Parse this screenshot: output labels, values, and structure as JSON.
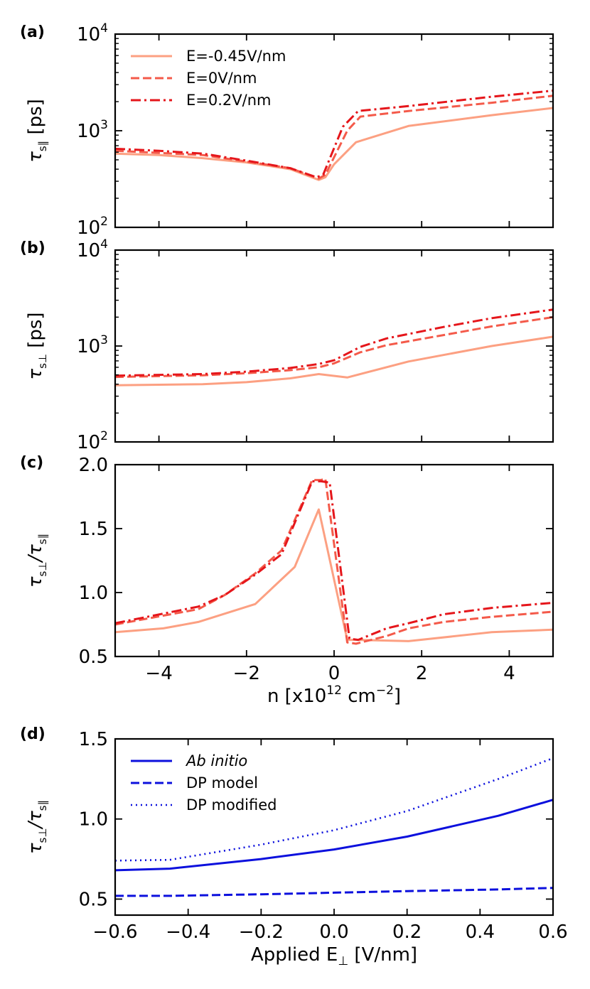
{
  "colors": {
    "light": "#fca082",
    "medium": "#f45a4a",
    "dark": "#e5161b",
    "blue": "#0c10dd"
  },
  "chart_data": [
    {
      "id": "a",
      "panel_label": "(a)",
      "type": "line",
      "ylabel_main": "τ",
      "ylabel_sub": "s∥",
      "ylabel_unit": " [ps]",
      "yscale": "log",
      "ylim": [
        100,
        10000
      ],
      "xlim": [
        -5,
        5
      ],
      "ytick_labels": [
        {
          "value": 100,
          "base": "10",
          "exp": "2"
        },
        {
          "value": 1000,
          "base": "10",
          "exp": "3"
        },
        {
          "value": 10000,
          "base": "10",
          "exp": "4"
        }
      ],
      "legend": {
        "placement": "top-left"
      },
      "series": [
        {
          "name": "E=-0.45V/nm",
          "style": "solid",
          "color_key": "light",
          "x": [
            -5,
            -4,
            -3,
            -2,
            -1,
            -0.35,
            -0.2,
            0,
            0.5,
            1.7,
            3.6,
            5
          ],
          "y": [
            580,
            560,
            520,
            470,
            400,
            310,
            330,
            450,
            760,
            1120,
            1450,
            1720
          ]
        },
        {
          "name": "E=0V/nm",
          "style": "dashed",
          "color_key": "medium",
          "x": [
            -5,
            -4,
            -3,
            -2,
            -1,
            -0.35,
            -0.2,
            0.3,
            0.6,
            1.7,
            3.6,
            5
          ],
          "y": [
            620,
            590,
            560,
            480,
            410,
            320,
            350,
            1000,
            1400,
            1600,
            1950,
            2300
          ]
        },
        {
          "name": "E=0.2V/nm",
          "style": "dashdot",
          "color_key": "dark",
          "x": [
            -5,
            -4,
            -3,
            -2,
            -1,
            -0.4,
            -0.25,
            0.2,
            0.55,
            1.7,
            3.6,
            5
          ],
          "y": [
            650,
            620,
            580,
            490,
            410,
            330,
            350,
            1100,
            1600,
            1800,
            2250,
            2600
          ]
        }
      ]
    },
    {
      "id": "b",
      "panel_label": "(b)",
      "type": "line",
      "ylabel_main": "τ",
      "ylabel_sub": "s⊥",
      "ylabel_unit": " [ps]",
      "yscale": "log",
      "ylim": [
        100,
        10000
      ],
      "xlim": [
        -5,
        5
      ],
      "ytick_labels": [
        {
          "value": 100,
          "base": "10",
          "exp": "2"
        },
        {
          "value": 1000,
          "base": "10",
          "exp": "3"
        },
        {
          "value": 10000,
          "base": "10",
          "exp": "4"
        }
      ],
      "series": [
        {
          "style": "solid",
          "color_key": "light",
          "x": [
            -5,
            -3,
            -2,
            -1,
            -0.35,
            0.3,
            1.7,
            3.6,
            5
          ],
          "y": [
            390,
            400,
            420,
            460,
            510,
            470,
            690,
            1000,
            1250
          ]
        },
        {
          "style": "dashed",
          "color_key": "medium",
          "x": [
            -5,
            -3,
            -2,
            -1,
            -0.35,
            0,
            0.6,
            1.2,
            2.5,
            3.6,
            5
          ],
          "y": [
            475,
            495,
            520,
            560,
            600,
            660,
            860,
            1020,
            1300,
            1600,
            2000
          ]
        },
        {
          "style": "dashdot",
          "color_key": "dark",
          "x": [
            -5,
            -3,
            -2,
            -1,
            -0.35,
            0,
            0.6,
            1.2,
            2.5,
            3.6,
            5
          ],
          "y": [
            490,
            510,
            540,
            590,
            650,
            710,
            980,
            1200,
            1580,
            1950,
            2400
          ]
        }
      ]
    },
    {
      "id": "c",
      "panel_label": "(c)",
      "type": "line",
      "ylabel_main": "τ",
      "ylabel_sub": "s⊥",
      "ylabel_main2": "/τ",
      "ylabel_sub2": "s∥",
      "yscale": "linear",
      "ylim": [
        0.5,
        2.0
      ],
      "yticks": [
        0.5,
        1.0,
        1.5,
        2.0
      ],
      "ytick_labels": [
        "0.5",
        "1.0",
        "1.5",
        "2.0"
      ],
      "xlim": [
        -5,
        5
      ],
      "xticks": [
        -4,
        -2,
        0,
        2,
        4
      ],
      "xtick_labels": [
        "−4",
        "−2",
        "0",
        "2",
        "4"
      ],
      "xlabel_main": "n [x10",
      "xlabel_sup": "12",
      "xlabel_mid": " cm",
      "xlabel_sup2": "−2",
      "xlabel_end": "]",
      "series": [
        {
          "style": "solid",
          "color_key": "light",
          "x": [
            -5,
            -3.9,
            -3.1,
            -1.8,
            -0.9,
            -0.35,
            0.3,
            0.5,
            1.7,
            3.6,
            5
          ],
          "y": [
            0.69,
            0.72,
            0.77,
            0.91,
            1.2,
            1.65,
            0.63,
            0.63,
            0.62,
            0.69,
            0.71
          ]
        },
        {
          "style": "dashed",
          "color_key": "medium",
          "x": [
            -5,
            -3.1,
            -2.5,
            -1.8,
            -1.2,
            -0.5,
            -0.3,
            -0.2,
            0.3,
            0.5,
            1.2,
            1.7,
            2.5,
            3.6,
            5
          ],
          "y": [
            0.75,
            0.87,
            0.98,
            1.15,
            1.33,
            1.88,
            1.88,
            1.89,
            0.61,
            0.6,
            0.66,
            0.72,
            0.77,
            0.81,
            0.85
          ]
        },
        {
          "style": "dashdot",
          "color_key": "dark",
          "x": [
            -5,
            -3.1,
            -2.5,
            -1.8,
            -1.2,
            -0.5,
            -0.3,
            -0.1,
            0.35,
            0.55,
            1.2,
            1.7,
            2.5,
            3.6,
            5
          ],
          "y": [
            0.76,
            0.89,
            0.98,
            1.14,
            1.3,
            1.87,
            1.87,
            1.86,
            0.64,
            0.63,
            0.72,
            0.76,
            0.83,
            0.88,
            0.92
          ]
        }
      ]
    },
    {
      "id": "d",
      "panel_label": "(d)",
      "type": "line",
      "ylabel_main": "τ",
      "ylabel_sub": "s⊥",
      "ylabel_main2": "/τ",
      "ylabel_sub2": "s∥",
      "yscale": "linear",
      "ylim": [
        0.4,
        1.5
      ],
      "yticks": [
        0.5,
        1.0,
        1.5
      ],
      "ytick_labels": [
        "0.5",
        "1.0",
        "1.5"
      ],
      "xlim": [
        -0.6,
        0.6
      ],
      "xticks": [
        -0.6,
        -0.4,
        -0.2,
        0.0,
        0.2,
        0.4,
        0.6
      ],
      "xtick_labels": [
        "−0.6",
        "−0.4",
        "−0.2",
        "0.0",
        "0.2",
        "0.4",
        "0.6"
      ],
      "xlabel_main": "Applied E",
      "xlabel_sub": "⊥",
      "xlabel_end": " [V/nm]",
      "legend": {
        "placement": "top-left"
      },
      "series": [
        {
          "name": "Ab initio",
          "italic": true,
          "style": "solid",
          "color_key": "blue",
          "x": [
            -0.6,
            -0.45,
            -0.2,
            0.0,
            0.2,
            0.45,
            0.6
          ],
          "y": [
            0.68,
            0.69,
            0.75,
            0.81,
            0.89,
            1.02,
            1.12
          ]
        },
        {
          "name": "DP model",
          "style": "dashed",
          "color_key": "blue",
          "x": [
            -0.6,
            -0.45,
            -0.2,
            0.0,
            0.2,
            0.45,
            0.6
          ],
          "y": [
            0.52,
            0.52,
            0.53,
            0.54,
            0.55,
            0.56,
            0.57
          ]
        },
        {
          "name": "DP modified",
          "style": "dotted",
          "color_key": "blue",
          "x": [
            -0.6,
            -0.45,
            -0.2,
            0.0,
            0.2,
            0.45,
            0.6
          ],
          "y": [
            0.74,
            0.745,
            0.84,
            0.93,
            1.05,
            1.25,
            1.38
          ]
        }
      ]
    }
  ]
}
